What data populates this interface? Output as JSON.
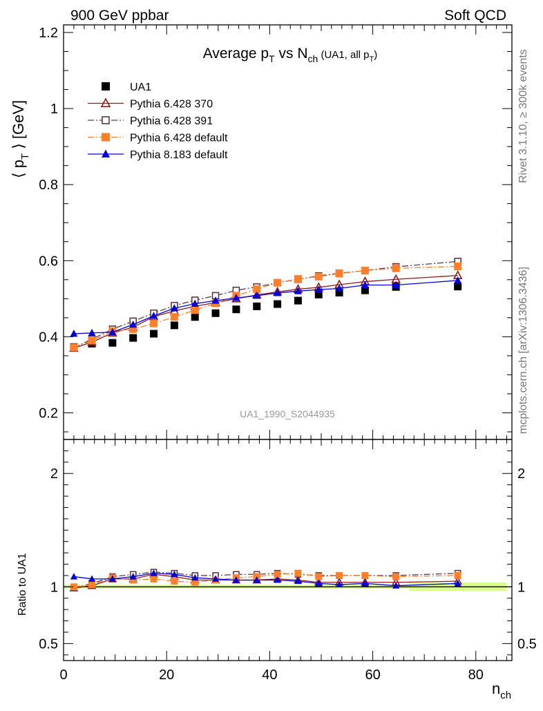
{
  "header": {
    "left": "900 GeV ppbar",
    "right": "Soft QCD"
  },
  "side_labels": {
    "rivet": "Rivet 3.1.10, ≥ 300k events",
    "mcplots": "mcplots.cern.ch [arXiv:1306.3436]"
  },
  "chart_data": [
    {
      "type": "scatter",
      "title_parts": {
        "a": "Average p",
        "a_sub": "T",
        "b": " vs N",
        "b_sub": "ch",
        "c": " (UA1, all p",
        "c_sub": "T",
        "d": ")"
      },
      "ylabel_parts": {
        "open": "⟨ p",
        "sub": "T",
        "close": " ⟩ [GeV]"
      },
      "xlabel_parts": {
        "main": "n",
        "sub": "ch"
      },
      "watermark": "UA1_1990_S2044935",
      "xlim": [
        0,
        87
      ],
      "ylim": [
        0.13,
        1.22
      ],
      "yticks": [
        "0.2",
        "0.4",
        "0.6",
        "0.8",
        "1",
        "1.2"
      ],
      "xticks": [
        "0",
        "20",
        "40",
        "60",
        "80"
      ],
      "x": [
        2,
        5.5,
        9.5,
        13.5,
        17.5,
        21.5,
        25.5,
        29.5,
        33.5,
        37.5,
        41.5,
        45.5,
        49.5,
        53.5,
        58.5,
        64.5,
        76.5
      ],
      "series": [
        {
          "name": "UA1",
          "color": "#000000",
          "marker": "square-filled",
          "line": "none",
          "values": [
            0.373,
            0.382,
            0.384,
            0.397,
            0.408,
            0.43,
            0.452,
            0.462,
            0.472,
            0.48,
            0.486,
            0.495,
            0.511,
            0.516,
            0.522,
            0.531,
            0.532
          ]
        },
        {
          "name": "Pythia 6.428 370",
          "color": "#8b1a1a",
          "marker": "triangle-open",
          "line": "solid",
          "values": [
            0.37,
            0.386,
            0.41,
            0.425,
            0.453,
            0.468,
            0.48,
            0.49,
            0.5,
            0.51,
            0.518,
            0.525,
            0.53,
            0.537,
            0.545,
            0.551,
            0.561
          ]
        },
        {
          "name": "Pythia 6.428 391",
          "color": "#5a3a44",
          "marker": "square-open",
          "line": "dashdot",
          "values": [
            0.371,
            0.394,
            0.42,
            0.441,
            0.462,
            0.482,
            0.496,
            0.508,
            0.522,
            0.531,
            0.542,
            0.551,
            0.56,
            0.567,
            0.574,
            0.584,
            0.598
          ]
        },
        {
          "name": "Pythia 6.428 default",
          "color": "#ff7f2a",
          "marker": "square-filled",
          "line": "dashdot",
          "values": [
            0.372,
            0.39,
            0.415,
            0.42,
            0.435,
            0.452,
            0.47,
            0.488,
            0.508,
            0.525,
            0.542,
            0.552,
            0.558,
            0.566,
            0.574,
            0.58,
            0.585
          ]
        },
        {
          "name": "Pythia 8.183 default",
          "color": "#0000dd",
          "marker": "triangle-filled",
          "line": "solid",
          "values": [
            0.408,
            0.41,
            0.412,
            0.432,
            0.455,
            0.475,
            0.487,
            0.495,
            0.502,
            0.508,
            0.515,
            0.52,
            0.524,
            0.527,
            0.536,
            0.536,
            0.548
          ]
        }
      ]
    },
    {
      "type": "line",
      "ylabel": "Ratio to UA1",
      "xlim": [
        0,
        87
      ],
      "ylim": [
        0.35,
        2.3
      ],
      "yticks": [
        "0.5",
        "1",
        "2"
      ],
      "band": {
        "color": "#ccff66",
        "edge_color": "#b8e986"
      },
      "reference_line": 1,
      "x": [
        2,
        5.5,
        9.5,
        13.5,
        17.5,
        21.5,
        25.5,
        29.5,
        33.5,
        37.5,
        41.5,
        45.5,
        49.5,
        53.5,
        58.5,
        64.5,
        76.5
      ],
      "series": [
        {
          "name": "Pythia 6.428 370",
          "values": [
            0.99,
            1.01,
            1.07,
            1.07,
            1.11,
            1.09,
            1.06,
            1.06,
            1.06,
            1.06,
            1.07,
            1.06,
            1.04,
            1.04,
            1.04,
            1.04,
            1.05
          ]
        },
        {
          "name": "Pythia 6.428 391",
          "values": [
            0.99,
            1.03,
            1.09,
            1.11,
            1.13,
            1.12,
            1.1,
            1.1,
            1.11,
            1.11,
            1.12,
            1.11,
            1.1,
            1.1,
            1.1,
            1.1,
            1.12
          ]
        },
        {
          "name": "Pythia 6.428 default",
          "values": [
            1.0,
            1.02,
            1.08,
            1.06,
            1.07,
            1.05,
            1.04,
            1.06,
            1.08,
            1.09,
            1.11,
            1.12,
            1.09,
            1.1,
            1.1,
            1.09,
            1.1
          ]
        },
        {
          "name": "Pythia 8.183 default",
          "values": [
            1.09,
            1.07,
            1.07,
            1.09,
            1.12,
            1.11,
            1.08,
            1.07,
            1.06,
            1.06,
            1.06,
            1.05,
            1.03,
            1.02,
            1.03,
            1.01,
            1.03
          ]
        }
      ]
    }
  ]
}
